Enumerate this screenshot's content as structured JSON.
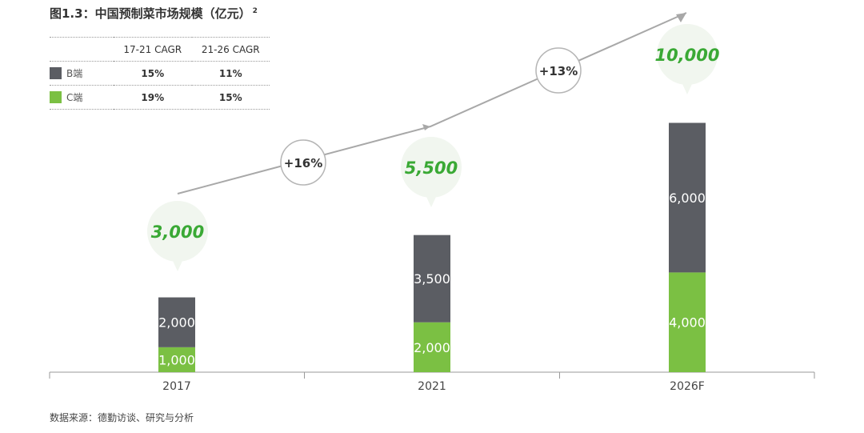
{
  "title": "图1.3：中国预制菜市场规模（亿元）",
  "title_superscript": "2",
  "cagr_table": {
    "headers": [
      "",
      "17-21 CAGR",
      "21-26 CAGR"
    ],
    "rows": [
      {
        "label": "B端",
        "color": "#5b5d63",
        "values": [
          "15%",
          "11%"
        ]
      },
      {
        "label": "C端",
        "color": "#7bc043",
        "values": [
          "19%",
          "15%"
        ]
      }
    ]
  },
  "chart_data": {
    "type": "bar",
    "stacked": true,
    "categories": [
      "2017",
      "2021",
      "2026F"
    ],
    "series": [
      {
        "name": "C端",
        "color": "#7bc043",
        "values": [
          1000,
          2000,
          4000
        ],
        "labels": [
          "1,000",
          "2,000",
          "4,000"
        ]
      },
      {
        "name": "B端",
        "color": "#5b5d63",
        "values": [
          2000,
          3500,
          6000
        ],
        "labels": [
          "2,000",
          "3,500",
          "6,000"
        ]
      }
    ],
    "totals": [
      3000,
      5500,
      10000
    ],
    "total_labels": [
      "3,000",
      "5,500",
      "10,000"
    ],
    "growth_labels": [
      "+16%",
      "+13%"
    ],
    "total_label_color": "#3aa935"
  },
  "source": "数据来源：德勤访谈、研究与分析"
}
